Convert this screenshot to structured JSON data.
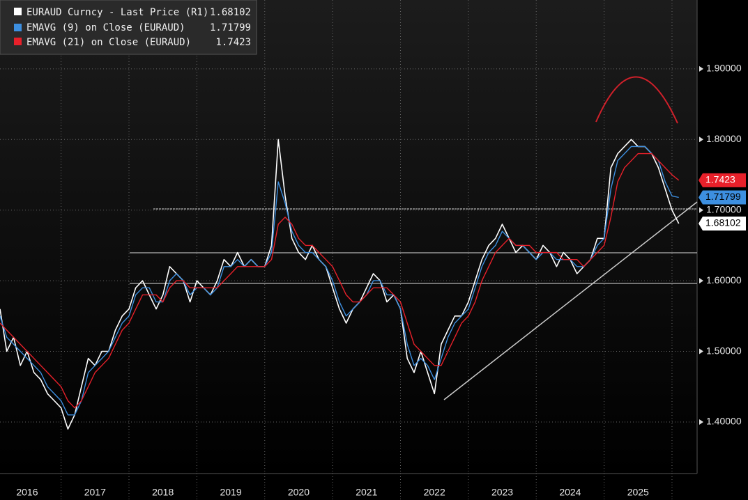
{
  "chart_data": {
    "type": "line",
    "x": [
      2016.1,
      2016.2,
      2016.3,
      2016.4,
      2016.5,
      2016.6,
      2016.7,
      2016.8,
      2016.9,
      2017.0,
      2017.1,
      2017.2,
      2017.3,
      2017.4,
      2017.5,
      2017.6,
      2017.7,
      2017.8,
      2017.9,
      2018.0,
      2018.1,
      2018.2,
      2018.3,
      2018.4,
      2018.5,
      2018.6,
      2018.7,
      2018.8,
      2018.9,
      2019.0,
      2019.1,
      2019.2,
      2019.3,
      2019.4,
      2019.5,
      2019.6,
      2019.7,
      2019.8,
      2019.9,
      2020.0,
      2020.1,
      2020.2,
      2020.3,
      2020.4,
      2020.5,
      2020.6,
      2020.7,
      2020.8,
      2020.9,
      2021.0,
      2021.1,
      2021.2,
      2021.3,
      2021.4,
      2021.5,
      2021.6,
      2021.7,
      2021.8,
      2021.9,
      2022.0,
      2022.1,
      2022.2,
      2022.3,
      2022.4,
      2022.5,
      2022.6,
      2022.7,
      2022.8,
      2022.9,
      2023.0,
      2023.1,
      2023.2,
      2023.3,
      2023.4,
      2023.5,
      2023.6,
      2023.7,
      2023.8,
      2023.9,
      2024.0,
      2024.1,
      2024.2,
      2024.3,
      2024.4,
      2024.5,
      2024.6,
      2024.7,
      2024.8,
      2024.9,
      2025.0,
      2025.1,
      2025.2,
      2025.3,
      2025.4,
      2025.5,
      2025.6,
      2025.7,
      2025.8,
      2025.9,
      2026.0,
      2026.1
    ],
    "series": [
      {
        "name": "EURAUD Curncy - Last Price (R1)",
        "last": 1.68102,
        "color": "#ffffff",
        "values": [
          1.56,
          1.5,
          1.52,
          1.48,
          1.5,
          1.47,
          1.46,
          1.44,
          1.43,
          1.42,
          1.39,
          1.41,
          1.45,
          1.49,
          1.48,
          1.5,
          1.5,
          1.53,
          1.55,
          1.56,
          1.59,
          1.6,
          1.58,
          1.56,
          1.58,
          1.62,
          1.61,
          1.6,
          1.57,
          1.6,
          1.59,
          1.58,
          1.6,
          1.63,
          1.62,
          1.64,
          1.62,
          1.63,
          1.62,
          1.62,
          1.65,
          1.8,
          1.72,
          1.66,
          1.64,
          1.63,
          1.65,
          1.63,
          1.62,
          1.59,
          1.56,
          1.54,
          1.56,
          1.57,
          1.59,
          1.61,
          1.6,
          1.57,
          1.58,
          1.56,
          1.49,
          1.47,
          1.5,
          1.47,
          1.44,
          1.51,
          1.53,
          1.55,
          1.55,
          1.57,
          1.6,
          1.63,
          1.65,
          1.66,
          1.68,
          1.66,
          1.64,
          1.65,
          1.64,
          1.63,
          1.65,
          1.64,
          1.62,
          1.64,
          1.63,
          1.61,
          1.62,
          1.63,
          1.66,
          1.66,
          1.76,
          1.78,
          1.79,
          1.8,
          1.79,
          1.79,
          1.78,
          1.76,
          1.73,
          1.7,
          1.68102
        ]
      },
      {
        "name": "EMAVG (9)  on Close (EURAUD)",
        "last": 1.71799,
        "color": "#3d8fe0",
        "values": [
          1.55,
          1.52,
          1.51,
          1.5,
          1.49,
          1.48,
          1.47,
          1.45,
          1.44,
          1.43,
          1.41,
          1.41,
          1.43,
          1.47,
          1.48,
          1.49,
          1.5,
          1.52,
          1.54,
          1.55,
          1.58,
          1.59,
          1.59,
          1.57,
          1.57,
          1.6,
          1.61,
          1.6,
          1.58,
          1.59,
          1.59,
          1.58,
          1.59,
          1.62,
          1.62,
          1.63,
          1.62,
          1.63,
          1.62,
          1.62,
          1.64,
          1.74,
          1.71,
          1.67,
          1.65,
          1.64,
          1.64,
          1.63,
          1.62,
          1.6,
          1.57,
          1.55,
          1.56,
          1.57,
          1.58,
          1.6,
          1.6,
          1.58,
          1.58,
          1.56,
          1.51,
          1.48,
          1.49,
          1.48,
          1.46,
          1.49,
          1.52,
          1.54,
          1.55,
          1.56,
          1.59,
          1.62,
          1.64,
          1.65,
          1.67,
          1.66,
          1.65,
          1.65,
          1.64,
          1.63,
          1.64,
          1.64,
          1.63,
          1.63,
          1.63,
          1.62,
          1.62,
          1.63,
          1.65,
          1.66,
          1.73,
          1.77,
          1.78,
          1.79,
          1.79,
          1.79,
          1.78,
          1.77,
          1.74,
          1.72,
          1.71799
        ]
      },
      {
        "name": "EMAVG (21)  on Close (EURAUD)",
        "last": 1.7423,
        "color": "#e8202a",
        "values": [
          1.54,
          1.53,
          1.52,
          1.51,
          1.5,
          1.49,
          1.48,
          1.47,
          1.46,
          1.45,
          1.43,
          1.42,
          1.43,
          1.45,
          1.47,
          1.48,
          1.49,
          1.51,
          1.53,
          1.54,
          1.56,
          1.58,
          1.58,
          1.58,
          1.57,
          1.59,
          1.6,
          1.6,
          1.59,
          1.59,
          1.59,
          1.59,
          1.59,
          1.6,
          1.61,
          1.62,
          1.62,
          1.62,
          1.62,
          1.62,
          1.63,
          1.68,
          1.69,
          1.68,
          1.66,
          1.65,
          1.65,
          1.64,
          1.63,
          1.62,
          1.6,
          1.58,
          1.57,
          1.57,
          1.58,
          1.59,
          1.59,
          1.59,
          1.58,
          1.57,
          1.54,
          1.51,
          1.5,
          1.49,
          1.48,
          1.48,
          1.5,
          1.52,
          1.54,
          1.55,
          1.57,
          1.6,
          1.62,
          1.64,
          1.65,
          1.66,
          1.65,
          1.65,
          1.65,
          1.64,
          1.64,
          1.64,
          1.64,
          1.63,
          1.63,
          1.63,
          1.62,
          1.63,
          1.64,
          1.65,
          1.69,
          1.74,
          1.76,
          1.77,
          1.78,
          1.78,
          1.78,
          1.77,
          1.76,
          1.75,
          1.7423
        ]
      }
    ],
    "xlim": [
      2016.1,
      2026.37
    ],
    "xticks": [
      {
        "value": 2016.5,
        "label": "2016"
      },
      {
        "value": 2017.5,
        "label": "2017"
      },
      {
        "value": 2018.5,
        "label": "2018"
      },
      {
        "value": 2019.5,
        "label": "2019"
      },
      {
        "value": 2020.5,
        "label": "2020"
      },
      {
        "value": 2021.5,
        "label": "2021"
      },
      {
        "value": 2022.5,
        "label": "2022"
      },
      {
        "value": 2023.5,
        "label": "2023"
      },
      {
        "value": 2024.5,
        "label": "2024"
      },
      {
        "value": 2025.5,
        "label": "2025"
      }
    ],
    "ylim": [
      1.327,
      1.9975
    ],
    "yticks": [
      {
        "value": 1.4,
        "label": "1.40000"
      },
      {
        "value": 1.5,
        "label": "1.50000"
      },
      {
        "value": 1.6,
        "label": "1.60000"
      },
      {
        "value": 1.7,
        "label": "1.70000"
      },
      {
        "value": 1.8,
        "label": "1.80000"
      },
      {
        "value": 1.9,
        "label": "1.90000"
      }
    ],
    "grid": true
  }
}
